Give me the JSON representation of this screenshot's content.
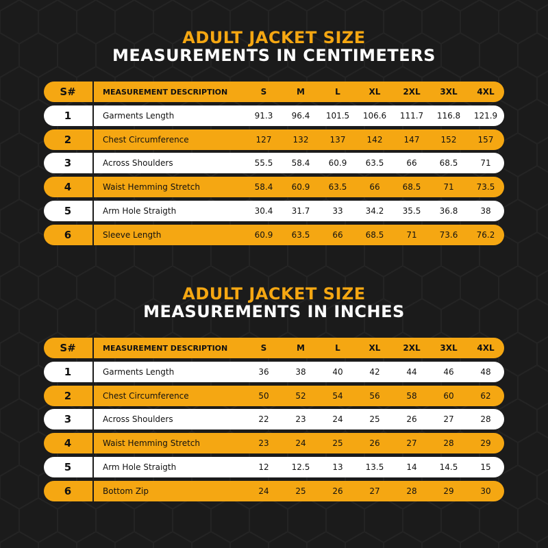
{
  "colors": {
    "accent": "#f5a712",
    "background": "#1b1b1b",
    "row_light": "#ffffff"
  },
  "tables": [
    {
      "title_line1": "ADULT JACKET SIZE",
      "title_line2": "MEASUREMENTS IN CENTIMETERS",
      "header": {
        "num": "S#",
        "desc": "MEASUREMENT DESCRIPTION",
        "sizes": [
          "S",
          "M",
          "L",
          "XL",
          "2XL",
          "3XL",
          "4XL"
        ]
      },
      "rows": [
        {
          "num": "1",
          "desc": "Garments Length",
          "values": [
            "91.3",
            "96.4",
            "101.5",
            "106.6",
            "111.7",
            "116.8",
            "121.9"
          ]
        },
        {
          "num": "2",
          "desc": "Chest Circumference",
          "values": [
            "127",
            "132",
            "137",
            "142",
            "147",
            "152",
            "157"
          ]
        },
        {
          "num": "3",
          "desc": "Across Shoulders",
          "values": [
            "55.5",
            "58.4",
            "60.9",
            "63.5",
            "66",
            "68.5",
            "71"
          ]
        },
        {
          "num": "4",
          "desc": "Waist Hemming Stretch",
          "values": [
            "58.4",
            "60.9",
            "63.5",
            "66",
            "68.5",
            "71",
            "73.5"
          ]
        },
        {
          "num": "5",
          "desc": "Arm Hole Straigth",
          "values": [
            "30.4",
            "31.7",
            "33",
            "34.2",
            "35.5",
            "36.8",
            "38"
          ]
        },
        {
          "num": "6",
          "desc": "Sleeve Length",
          "values": [
            "60.9",
            "63.5",
            "66",
            "68.5",
            "71",
            "73.6",
            "76.2"
          ]
        }
      ]
    },
    {
      "title_line1": "ADULT JACKET SIZE",
      "title_line2": "MEASUREMENTS IN INCHES",
      "header": {
        "num": "S#",
        "desc": "MEASUREMENT DESCRIPTION",
        "sizes": [
          "S",
          "M",
          "L",
          "XL",
          "2XL",
          "3XL",
          "4XL"
        ]
      },
      "rows": [
        {
          "num": "1",
          "desc": "Garments Length",
          "values": [
            "36",
            "38",
            "40",
            "42",
            "44",
            "46",
            "48"
          ]
        },
        {
          "num": "2",
          "desc": "Chest Circumference",
          "values": [
            "50",
            "52",
            "54",
            "56",
            "58",
            "60",
            "62"
          ]
        },
        {
          "num": "3",
          "desc": "Across Shoulders",
          "values": [
            "22",
            "23",
            "24",
            "25",
            "26",
            "27",
            "28"
          ]
        },
        {
          "num": "4",
          "desc": "Waist Hemming Stretch",
          "values": [
            "23",
            "24",
            "25",
            "26",
            "27",
            "28",
            "29"
          ]
        },
        {
          "num": "5",
          "desc": "Arm Hole Straigth",
          "values": [
            "12",
            "12.5",
            "13",
            "13.5",
            "14",
            "14.5",
            "15"
          ]
        },
        {
          "num": "6",
          "desc": "Bottom Zip",
          "values": [
            "24",
            "25",
            "26",
            "27",
            "28",
            "29",
            "30"
          ]
        }
      ]
    }
  ]
}
